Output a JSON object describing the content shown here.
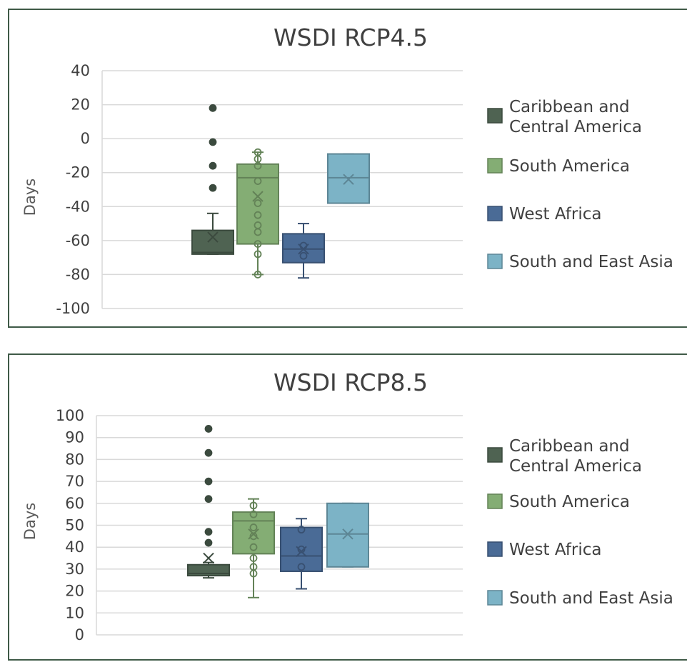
{
  "chart_data": [
    {
      "type": "box",
      "title": "WSDI RCP4.5",
      "ylabel": "Days",
      "xlabel": "",
      "ylim": [
        -100,
        40
      ],
      "yticks": [
        40,
        20,
        0,
        -20,
        -40,
        -60,
        -80,
        -100
      ],
      "grid": true,
      "legend_position": "right",
      "series": [
        {
          "name": "Caribbean and Central America",
          "color": "#4f6352",
          "q1": -68,
          "median": -67,
          "q3": -54,
          "whisker_low": -68,
          "whisker_high": -44,
          "mean": -58,
          "points": [
            18,
            -2,
            -16,
            -29
          ]
        },
        {
          "name": "South America",
          "color": "#84ad74",
          "q1": -62,
          "median": -23,
          "q3": -15,
          "whisker_low": -80,
          "whisker_high": -8,
          "mean": -34,
          "points": [
            -8,
            -12,
            -16,
            -25,
            -38,
            -45,
            -51,
            -55,
            -62,
            -68,
            -80
          ]
        },
        {
          "name": "West Africa",
          "color": "#4a6b96",
          "q1": -73,
          "median": -65,
          "q3": -56,
          "whisker_low": -82,
          "whisker_high": -50,
          "mean": -65,
          "points": [
            -63,
            -69
          ]
        },
        {
          "name": "South and East Asia",
          "color": "#7cb3c6",
          "q1": -38,
          "median": -23,
          "q3": -9,
          "whisker_low": -38,
          "whisker_high": -9,
          "mean": -24,
          "points": []
        }
      ]
    },
    {
      "type": "box",
      "title": "WSDI RCP8.5",
      "ylabel": "Days",
      "xlabel": "",
      "ylim": [
        0,
        100
      ],
      "yticks": [
        100,
        90,
        80,
        70,
        60,
        50,
        40,
        30,
        20,
        10,
        0
      ],
      "grid": true,
      "legend_position": "right",
      "series": [
        {
          "name": "Caribbean and Central America",
          "color": "#4f6352",
          "q1": 27,
          "median": 28,
          "q3": 32,
          "whisker_low": 26,
          "whisker_high": 33,
          "mean": 35,
          "points": [
            94,
            83,
            70,
            62,
            47,
            42
          ]
        },
        {
          "name": "South America",
          "color": "#84ad74",
          "q1": 37,
          "median": 52,
          "q3": 56,
          "whisker_low": 17,
          "whisker_high": 62,
          "mean": 46,
          "points": [
            59,
            55,
            49,
            45,
            40,
            35,
            31,
            28
          ]
        },
        {
          "name": "West Africa",
          "color": "#4a6b96",
          "q1": 29,
          "median": 36,
          "q3": 49,
          "whisker_low": 21,
          "whisker_high": 53,
          "mean": 38,
          "points": [
            48,
            39,
            31
          ]
        },
        {
          "name": "South and East Asia",
          "color": "#7cb3c6",
          "q1": 31,
          "median": 46,
          "q3": 60,
          "whisker_low": 31,
          "whisker_high": 60,
          "mean": 46,
          "points": []
        }
      ]
    }
  ]
}
